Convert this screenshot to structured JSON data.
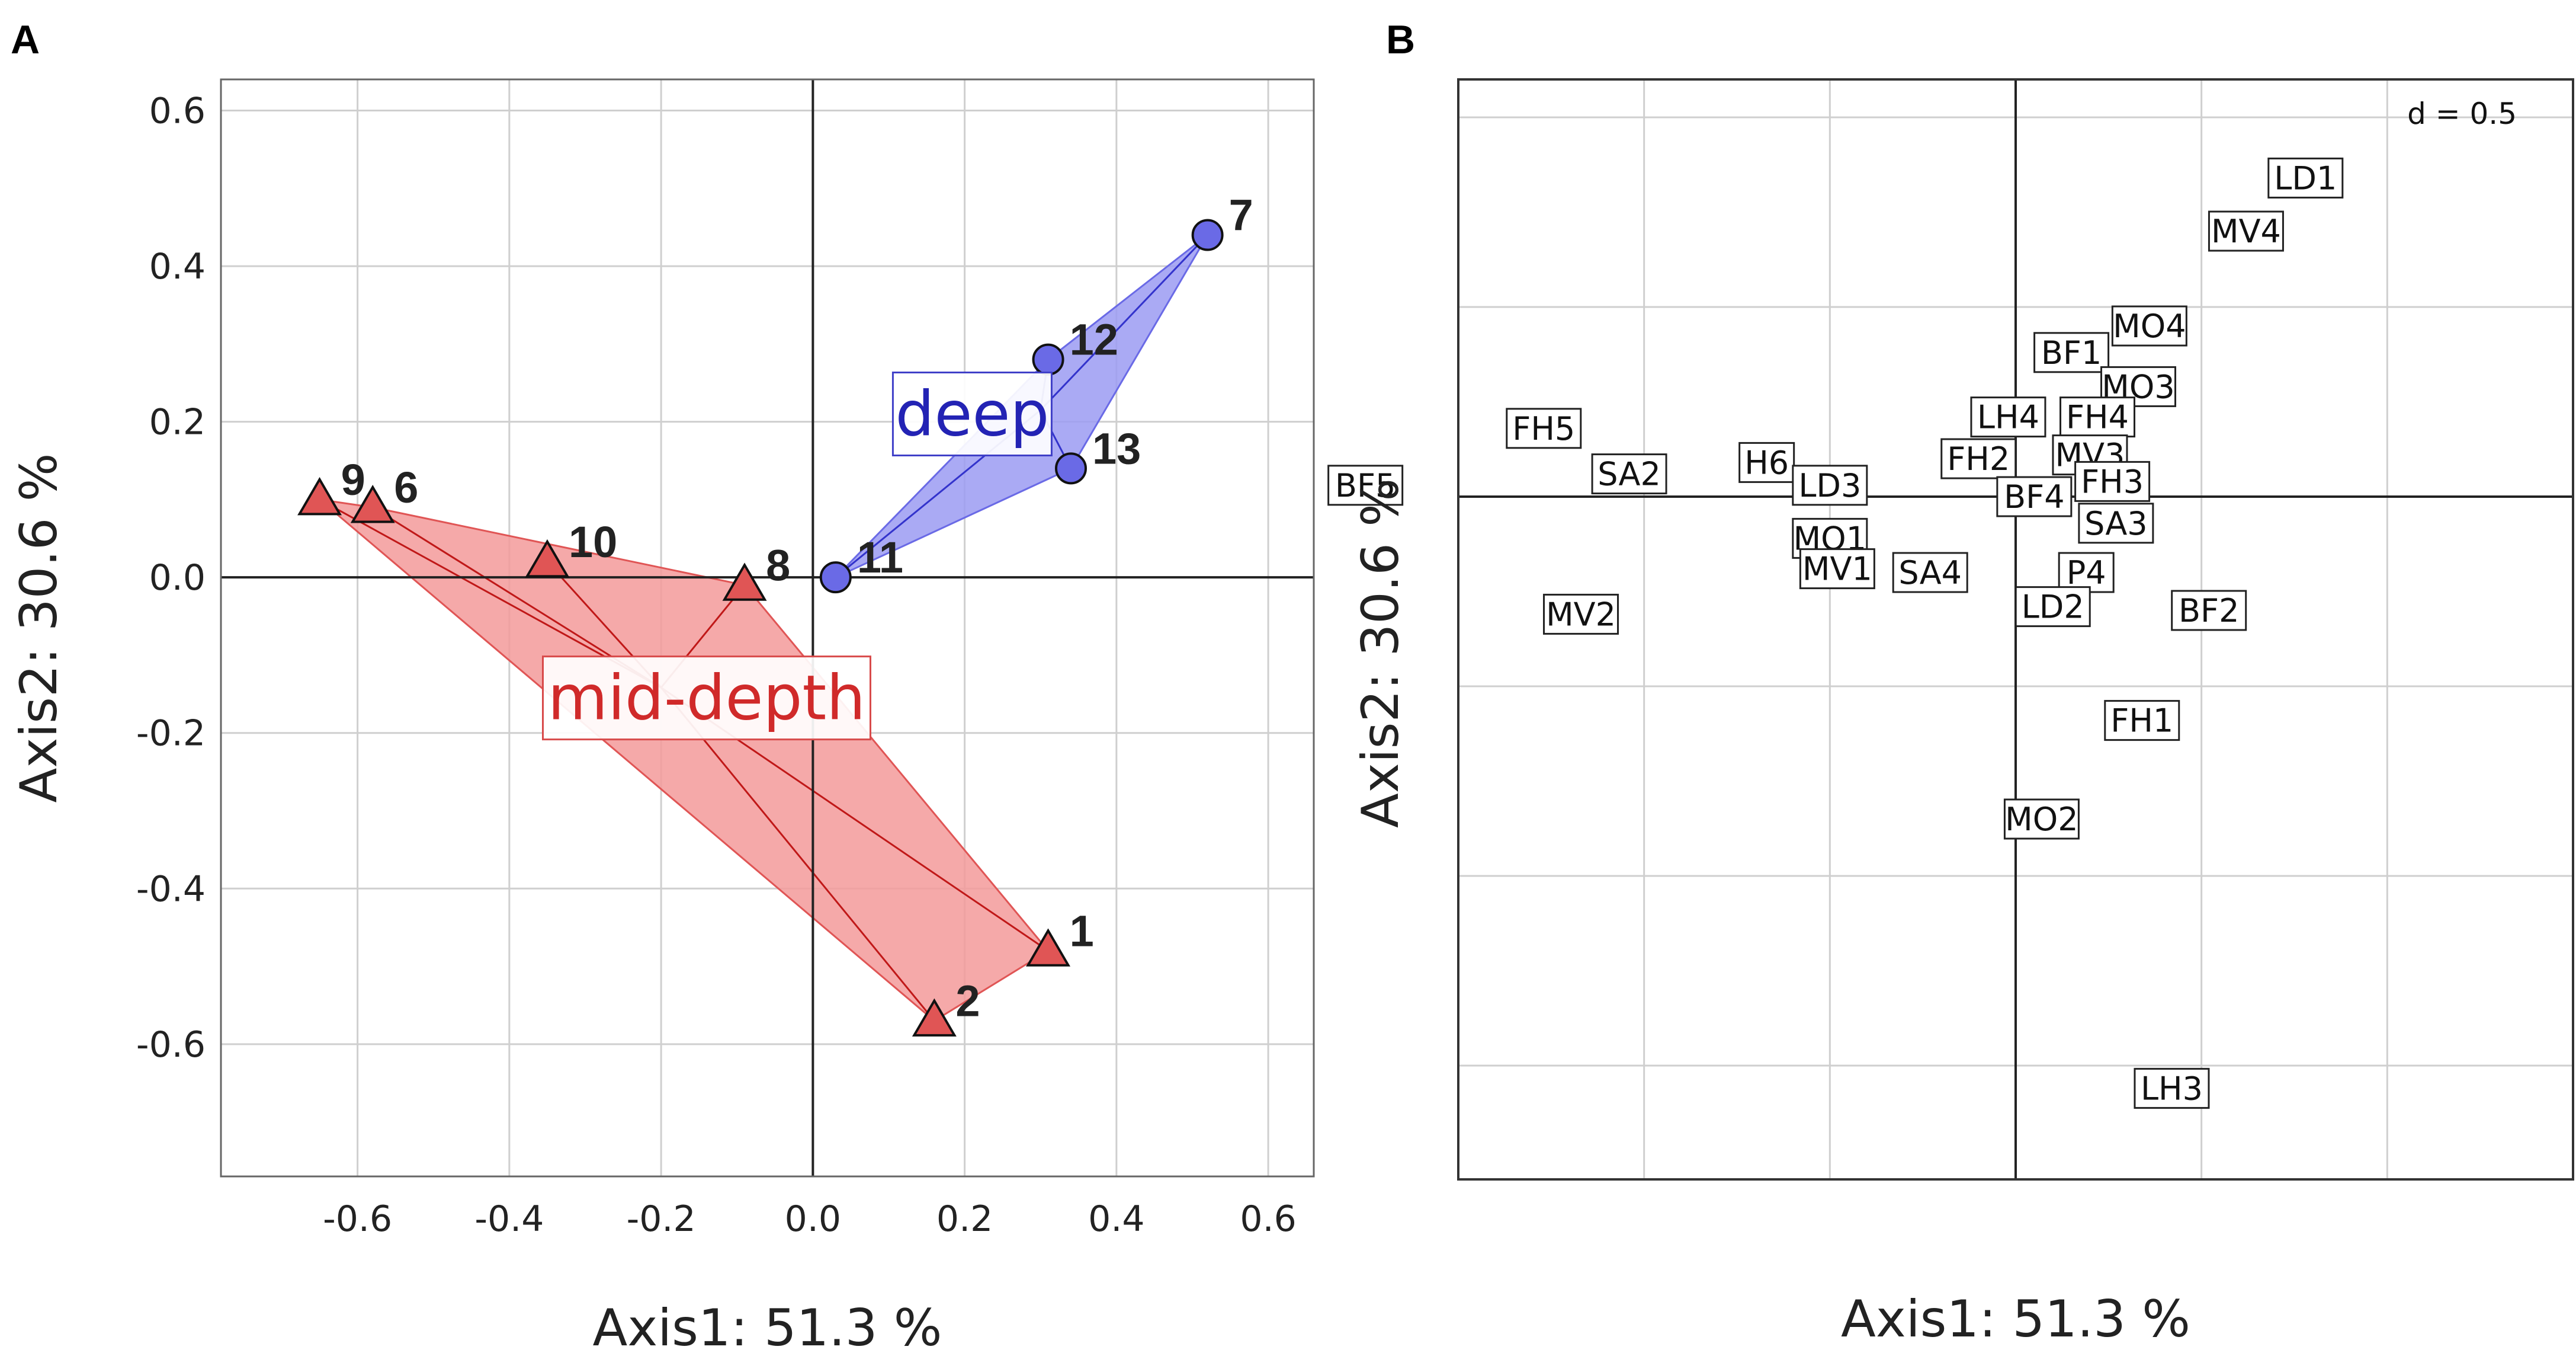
{
  "chart_data": [
    {
      "type": "scatter",
      "panel": "A",
      "xlabel": "Axis1: 51.3 %",
      "ylabel": "Axis2: 30.6 %",
      "xlim": [
        -0.78,
        0.66
      ],
      "ylim": [
        -0.77,
        0.64
      ],
      "xticks": [
        -0.6,
        -0.4,
        -0.2,
        0.0,
        0.2,
        0.4,
        0.6
      ],
      "yticks": [
        -0.6,
        -0.4,
        -0.2,
        0.0,
        0.2,
        0.4,
        0.6
      ],
      "xtick_labels": [
        "-0.6",
        "-0.4",
        "-0.2",
        "0.0",
        "0.2",
        "0.4",
        "0.6"
      ],
      "ytick_labels": [
        "-0.6",
        "-0.4",
        "-0.2",
        "0.0",
        "0.2",
        "0.4",
        "0.6"
      ],
      "grid": true,
      "groups": [
        {
          "name": "deep",
          "label": "deep",
          "marker": "circle",
          "color": "#6a6ae6",
          "hull_color": "#9b9bf2",
          "label_pos": [
            0.21,
            0.21
          ],
          "points": [
            {
              "id": "7",
              "x": 0.52,
              "y": 0.44
            },
            {
              "id": "12",
              "x": 0.31,
              "y": 0.28
            },
            {
              "id": "13",
              "x": 0.34,
              "y": 0.14
            },
            {
              "id": "11",
              "x": 0.03,
              "y": 0.0
            }
          ]
        },
        {
          "name": "mid-depth",
          "label": "mid-depth",
          "marker": "triangle",
          "color": "#e05555",
          "hull_color": "#f39a9a",
          "label_pos": [
            -0.14,
            -0.155
          ],
          "points": [
            {
              "id": "9",
              "x": -0.65,
              "y": 0.1
            },
            {
              "id": "6",
              "x": -0.58,
              "y": 0.09
            },
            {
              "id": "10",
              "x": -0.35,
              "y": 0.02
            },
            {
              "id": "8",
              "x": -0.09,
              "y": -0.01
            },
            {
              "id": "1",
              "x": 0.31,
              "y": -0.48
            },
            {
              "id": "2",
              "x": 0.16,
              "y": -0.57
            }
          ]
        }
      ]
    },
    {
      "type": "scatter",
      "panel": "B",
      "xlabel": "Axis1: 51.3 %",
      "ylabel": "Axis2: 30.6 %",
      "scale_label": "d = 0.5",
      "xlim": [
        -1.5,
        1.5
      ],
      "ylim": [
        -1.8,
        1.1
      ],
      "grid_step": 0.5,
      "grid": true,
      "sites": [
        {
          "label": "LD1",
          "x": 0.78,
          "y": 0.84
        },
        {
          "label": "MV4",
          "x": 0.62,
          "y": 0.7
        },
        {
          "label": "MO4",
          "x": 0.36,
          "y": 0.45
        },
        {
          "label": "BF1",
          "x": 0.15,
          "y": 0.38
        },
        {
          "label": "MO3",
          "x": 0.33,
          "y": 0.29
        },
        {
          "label": "LH4",
          "x": -0.02,
          "y": 0.21
        },
        {
          "label": "FH4",
          "x": 0.22,
          "y": 0.21
        },
        {
          "label": "FH5",
          "x": -1.27,
          "y": 0.18
        },
        {
          "label": "MV3",
          "x": 0.2,
          "y": 0.11
        },
        {
          "label": "H6",
          "x": -0.67,
          "y": 0.09
        },
        {
          "label": "FH2",
          "x": -0.1,
          "y": 0.1
        },
        {
          "label": "SA2",
          "x": -1.04,
          "y": 0.06
        },
        {
          "label": "LD3",
          "x": -0.5,
          "y": 0.03
        },
        {
          "label": "BF5",
          "x": -1.75,
          "y": 0.03
        },
        {
          "label": "FH3",
          "x": 0.26,
          "y": 0.04
        },
        {
          "label": "BF4",
          "x": 0.05,
          "y": 0.0
        },
        {
          "label": "SA3",
          "x": 0.27,
          "y": -0.07
        },
        {
          "label": "MO1",
          "x": -0.5,
          "y": -0.11
        },
        {
          "label": "SA4",
          "x": -0.23,
          "y": -0.2
        },
        {
          "label": "MV1",
          "x": -0.48,
          "y": -0.19
        },
        {
          "label": "P4",
          "x": 0.19,
          "y": -0.2
        },
        {
          "label": "LD2",
          "x": 0.1,
          "y": -0.29
        },
        {
          "label": "BF2",
          "x": 0.52,
          "y": -0.3
        },
        {
          "label": "MV2",
          "x": -1.17,
          "y": -0.31
        },
        {
          "label": "FH1",
          "x": 0.34,
          "y": -0.59
        },
        {
          "label": "MO2",
          "x": 0.07,
          "y": -0.85
        },
        {
          "label": "LH3",
          "x": 0.42,
          "y": -1.56
        }
      ]
    }
  ],
  "panels": {
    "a": {
      "letter": "A"
    },
    "b": {
      "letter": "B"
    }
  }
}
